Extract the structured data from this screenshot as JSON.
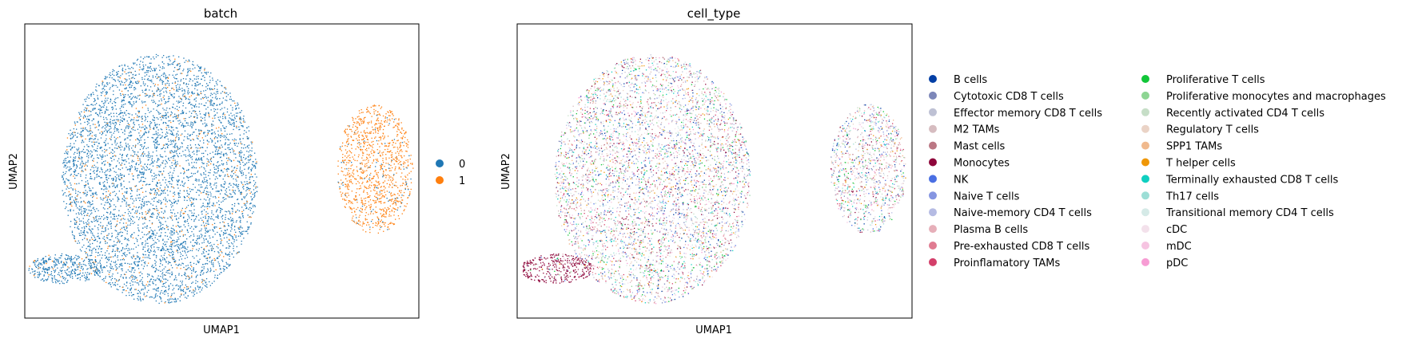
{
  "chart_data": [
    {
      "type": "scatter",
      "title": "batch",
      "xlabel": "UMAP1",
      "ylabel": "UMAP2",
      "xticks": [],
      "yticks": [],
      "legend_placement": "right",
      "legend": [
        {
          "label": "0",
          "color": "#1f77b4"
        },
        {
          "label": "1",
          "color": "#ff7f0e"
        }
      ],
      "clusters": [
        {
          "name": "main",
          "category": "0",
          "cx": 0.0,
          "cy": 0.0,
          "rx": 4.0,
          "ry": 5.0,
          "points": 5200
        },
        {
          "name": "tail",
          "category": "0",
          "cx": -3.9,
          "cy": -3.6,
          "rx": 1.5,
          "ry": 0.6,
          "points": 380
        },
        {
          "name": "island",
          "category": "1",
          "cx": 8.8,
          "cy": 0.4,
          "rx": 1.55,
          "ry": 2.6,
          "points": 1100
        }
      ],
      "xlim": [
        -5.5,
        10.6
      ],
      "ylim": [
        -5.6,
        6.2
      ]
    },
    {
      "type": "scatter",
      "title": "cell_type",
      "xlabel": "UMAP1",
      "ylabel": "UMAP2",
      "xticks": [],
      "yticks": [],
      "legend_placement": "right",
      "legend": [
        {
          "label": "B cells",
          "color": "#023fa5"
        },
        {
          "label": "Cytotoxic CD8 T cells",
          "color": "#7d87b9"
        },
        {
          "label": "Effector memory CD8 T cells",
          "color": "#bec1d4"
        },
        {
          "label": "M2 TAMs",
          "color": "#d6bcc0"
        },
        {
          "label": "Mast cells",
          "color": "#bb7784"
        },
        {
          "label": "Monocytes",
          "color": "#8e063b"
        },
        {
          "label": "NK",
          "color": "#4a6fe3"
        },
        {
          "label": "Naive T cells",
          "color": "#8595e1"
        },
        {
          "label": "Naive-memory CD4 T cells",
          "color": "#b5bbe3"
        },
        {
          "label": "Plasma B cells",
          "color": "#e6afb9"
        },
        {
          "label": "Pre-exhausted CD8 T cells",
          "color": "#e07b91"
        },
        {
          "label": "Proinflamatory TAMs",
          "color": "#d33f6a"
        },
        {
          "label": "Proliferative T cells",
          "color": "#11c638"
        },
        {
          "label": "Proliferative monocytes and macrophages",
          "color": "#8dd593"
        },
        {
          "label": "Recently activated CD4 T cells",
          "color": "#c6dec7"
        },
        {
          "label": "Regulatory T cells",
          "color": "#ead3c6"
        },
        {
          "label": "SPP1 TAMs",
          "color": "#f0b98d"
        },
        {
          "label": "T helper cells",
          "color": "#ef9708"
        },
        {
          "label": "Terminally exhausted CD8 T cells",
          "color": "#0fcfc0"
        },
        {
          "label": "Th17 cells",
          "color": "#9cded6"
        },
        {
          "label": "Transitional memory CD4 T cells",
          "color": "#d5eae7"
        },
        {
          "label": "cDC",
          "color": "#f3e1eb"
        },
        {
          "label": "mDC",
          "color": "#f6c4e1"
        },
        {
          "label": "pDC",
          "color": "#f79cd4"
        }
      ],
      "clusters": [
        {
          "name": "main",
          "category": "mixed",
          "cx": 0.0,
          "cy": 0.0,
          "rx": 4.0,
          "ry": 5.0,
          "points": 5200
        },
        {
          "name": "tail",
          "category": "Monocytes",
          "cx": -3.9,
          "cy": -3.6,
          "rx": 1.5,
          "ry": 0.6,
          "points": 380
        },
        {
          "name": "island",
          "category": "mixed",
          "cx": 8.8,
          "cy": 0.4,
          "rx": 1.55,
          "ry": 2.6,
          "points": 1100
        }
      ],
      "xlim": [
        -5.5,
        10.6
      ],
      "ylim": [
        -5.6,
        6.2
      ]
    }
  ]
}
